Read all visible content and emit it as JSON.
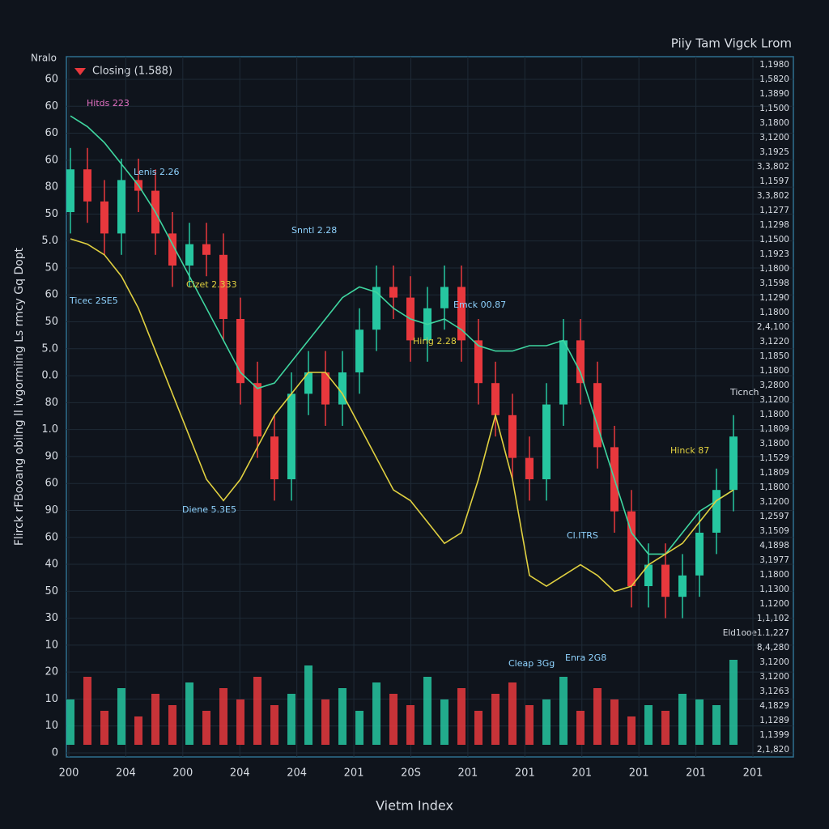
{
  "chart_data": {
    "type": "candlestick",
    "title": "Piiy Tam Vigck Lrom",
    "y_axis_header": "Nralo",
    "y_axis_title": "Flirck rFBooang obilng ll ivgormiing Ls rmcy Gq Dopt",
    "x_axis_title": "Vietm Index",
    "legend_label": "Closing (1.588)",
    "y_axis_labels": [
      "60",
      "60",
      "60",
      "60",
      "80",
      "50",
      "5.0",
      "50",
      "60",
      "50",
      "5.0",
      "0.0",
      "80",
      "1.0",
      "90",
      "60",
      "90",
      "60",
      "40",
      "50",
      "30",
      "10",
      "20",
      "10",
      "10",
      "0"
    ],
    "right_axis_labels": [
      "1,1980",
      "1,5820",
      "1,3890",
      "1,1500",
      "3,1800",
      "3,1200",
      "3,1925",
      "3,3,802",
      "1,1597",
      "3,3,802",
      "1,1277",
      "1,1298",
      "1,1500",
      "1,1923",
      "1,1800",
      "3,1598",
      "1,1290",
      "1,1800",
      "2,4,100",
      "3,1220",
      "1,1850",
      "1,1800",
      "3,2800",
      "3,1200",
      "1,1800",
      "1,1809",
      "3,1800",
      "1,1529",
      "1,1809",
      "1,1800",
      "3,1200",
      "1,2597",
      "3,1509",
      "4,1898",
      "3,1977",
      "1,1800",
      "1,1300",
      "1,1200",
      "1,1,102",
      "Eld1ooe1.1,227",
      "8,4,280",
      "3,1200",
      "3,1200",
      "3,1263",
      "4,1829",
      "1,1289",
      "1,1399",
      "2,1,820"
    ],
    "x_axis_labels": [
      "200",
      "204",
      "200",
      "204",
      "204",
      "201",
      "20S",
      "201",
      "201",
      "201",
      "201",
      "201",
      "201"
    ],
    "annotations": [
      "Hitds 223",
      "Lenis 2.26",
      "Snntl 2.28",
      "Cizet 2.333",
      "Ticec 2SE5",
      "Emck 00.87",
      "Hirig 2.28",
      "Ticnch",
      "Hinck 87",
      "Diene 5.3E5",
      "Cl.ITRS",
      "Cleap 3Gg",
      "Enra 2G8"
    ],
    "ylim": [
      0,
      100
    ],
    "volume_lim": [
      0,
      100
    ],
    "up_color": "#26c6a0",
    "down_color": "#e8383d",
    "open": [
      80,
      88,
      82,
      76,
      86,
      84,
      76,
      70,
      74,
      72,
      60,
      48,
      38,
      30,
      46,
      50,
      44,
      50,
      58,
      66,
      64,
      56,
      62,
      66,
      56,
      48,
      42,
      34,
      30,
      44,
      56,
      48,
      36,
      24,
      10,
      14,
      8,
      12,
      20,
      28
    ],
    "close": [
      88,
      82,
      76,
      86,
      84,
      76,
      70,
      74,
      72,
      60,
      48,
      38,
      30,
      46,
      50,
      44,
      50,
      58,
      66,
      64,
      56,
      62,
      66,
      56,
      48,
      42,
      34,
      30,
      44,
      56,
      48,
      36,
      24,
      10,
      14,
      8,
      12,
      20,
      28,
      38
    ],
    "high": [
      92,
      92,
      86,
      90,
      90,
      88,
      80,
      78,
      78,
      76,
      64,
      52,
      42,
      50,
      54,
      54,
      54,
      62,
      70,
      70,
      68,
      66,
      70,
      70,
      60,
      52,
      46,
      38,
      48,
      60,
      60,
      52,
      40,
      28,
      18,
      18,
      16,
      24,
      32,
      42
    ],
    "low": [
      76,
      78,
      72,
      72,
      80,
      72,
      66,
      66,
      68,
      56,
      44,
      34,
      26,
      26,
      42,
      40,
      40,
      46,
      54,
      60,
      52,
      52,
      58,
      52,
      44,
      38,
      30,
      26,
      26,
      40,
      44,
      32,
      20,
      6,
      6,
      4,
      4,
      8,
      16,
      24
    ],
    "volume": [
      40,
      60,
      30,
      50,
      25,
      45,
      35,
      55,
      30,
      50,
      40,
      60,
      35,
      45,
      70,
      40,
      50,
      30,
      55,
      45,
      35,
      60,
      40,
      50,
      30,
      45,
      55,
      35,
      40,
      60,
      30,
      50,
      40,
      25,
      35,
      30,
      45,
      40,
      35,
      75
    ],
    "series": [
      {
        "color": "#3fd6a0",
        "values": [
          98,
          96,
          93,
          89,
          85,
          80,
          74,
          68,
          62,
          56,
          50,
          47,
          48,
          52,
          56,
          60,
          64,
          66,
          65,
          62,
          60,
          59,
          60,
          58,
          55,
          54,
          54,
          55,
          55,
          56,
          50,
          40,
          30,
          20,
          16,
          16,
          20,
          24,
          26,
          28
        ]
      },
      {
        "color": "#e0d040",
        "values": [
          75,
          74,
          72,
          68,
          62,
          54,
          46,
          38,
          30,
          26,
          30,
          36,
          42,
          46,
          50,
          50,
          46,
          40,
          34,
          28,
          26,
          22,
          18,
          20,
          30,
          42,
          30,
          12,
          10,
          12,
          14,
          12,
          9,
          10,
          14,
          16,
          18,
          22,
          26,
          28
        ]
      }
    ]
  }
}
